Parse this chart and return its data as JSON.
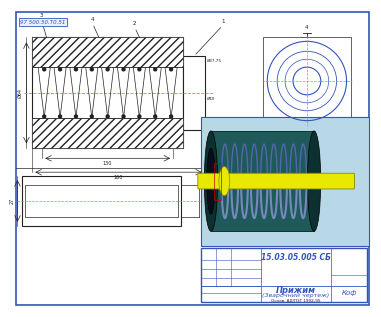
{
  "border_color": "#3355bb",
  "title_block": {
    "doc_num": "15.03.05.005 СБ",
    "title_line1": "Прижим",
    "title_line2": "(Зварочний чертеж)",
    "standard": "Основ. АД/ПЗТ 1992-95",
    "kof": "Коф"
  },
  "part_numbers_label": "97 500.50.Т0.51",
  "dimensions": {
    "dim_130": "130",
    "dim_160": "160",
    "left_dim": "Ø64",
    "right_dim1": "Ø37,75",
    "right_dim2": "Ø40",
    "side_dim": "27"
  },
  "spring_count": 9,
  "line_color": "#222222",
  "blue_color": "#3355bb",
  "orange_color": "#ee8800",
  "hatch_color": "#555555",
  "iso_bg": "#b8d8e8",
  "iso_body": "#1e5a5a",
  "iso_body_dark": "#0d3030",
  "iso_spring": "#7788bb",
  "iso_spring_dark": "#5566aa",
  "iso_shaft": "#e8e800",
  "iso_shaft_edge": "#888800",
  "iso_bore_dark": "#050f1a"
}
